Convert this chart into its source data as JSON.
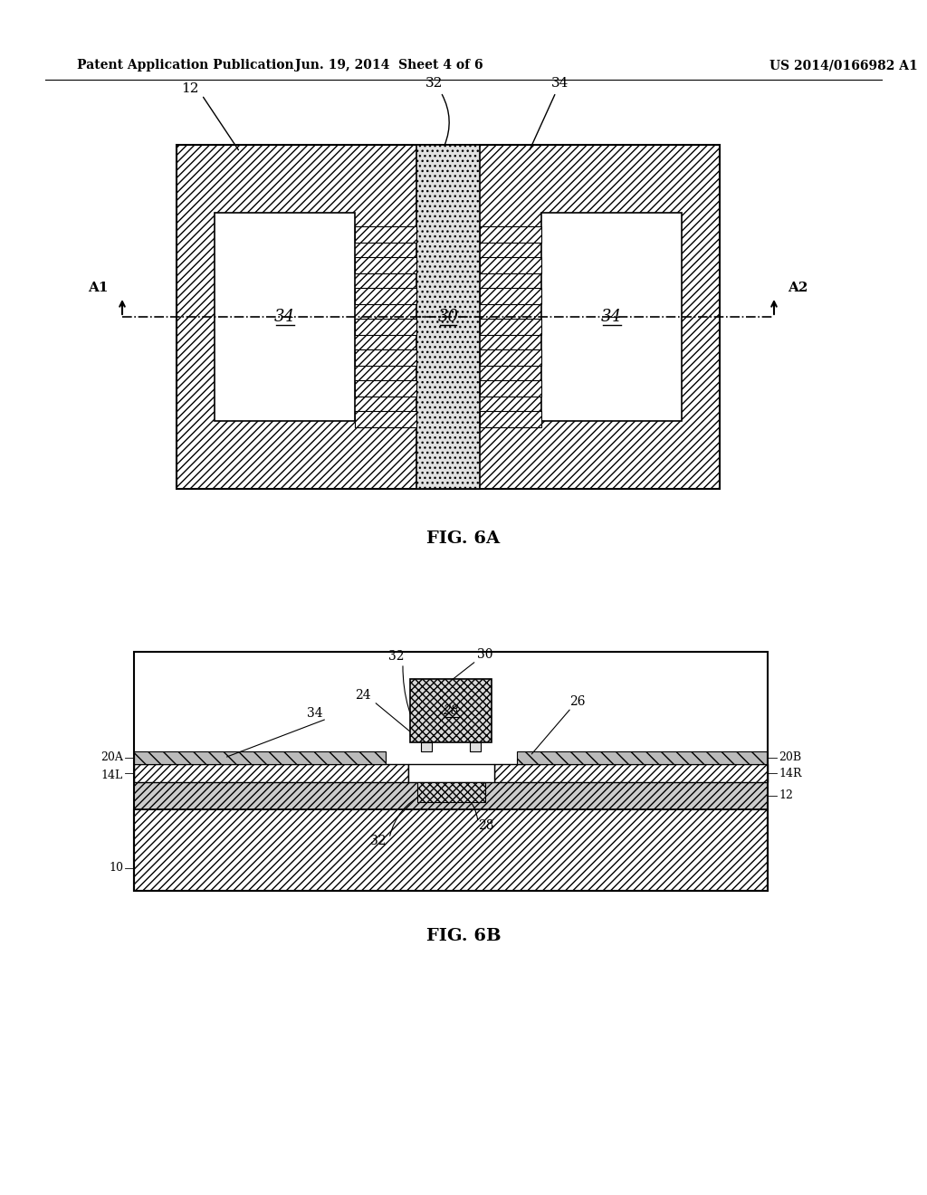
{
  "header_left": "Patent Application Publication",
  "header_mid": "Jun. 19, 2014  Sheet 4 of 6",
  "header_right": "US 2014/0166982 A1",
  "fig6a_label": "FIG. 6A",
  "fig6b_label": "FIG. 6B",
  "bg_color": "#ffffff"
}
